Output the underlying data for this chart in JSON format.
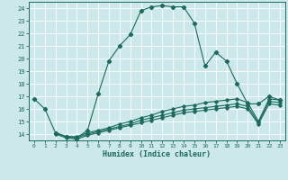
{
  "xlabel": "Humidex (Indice chaleur)",
  "xlim": [
    -0.5,
    23.5
  ],
  "ylim": [
    13.5,
    24.5
  ],
  "xticks": [
    0,
    1,
    2,
    3,
    4,
    5,
    6,
    7,
    8,
    9,
    10,
    11,
    12,
    13,
    14,
    15,
    16,
    17,
    18,
    19,
    20,
    21,
    22,
    23
  ],
  "yticks": [
    14,
    15,
    16,
    17,
    18,
    19,
    20,
    21,
    22,
    23,
    24
  ],
  "bg_color": "#cce8ea",
  "line_color": "#1a6b5a",
  "line1_x": [
    0,
    1,
    2,
    3,
    4,
    5,
    6,
    7,
    8,
    9,
    10,
    11,
    12,
    13,
    14,
    15,
    16,
    17,
    18,
    19,
    20,
    21,
    22,
    23
  ],
  "line1_y": [
    16.8,
    16.0,
    14.1,
    13.8,
    13.7,
    14.3,
    17.2,
    19.8,
    21.0,
    21.9,
    23.8,
    24.1,
    24.2,
    24.1,
    24.1,
    22.8,
    19.4,
    20.5,
    19.8,
    18.0,
    16.4,
    16.4,
    17.0,
    16.7
  ],
  "line2_x": [
    2,
    3,
    4,
    5,
    6,
    7,
    8,
    9,
    10,
    11,
    12,
    13,
    14,
    15,
    16,
    17,
    18,
    19,
    20,
    21,
    22,
    23
  ],
  "line2_y": [
    14.1,
    13.8,
    13.8,
    14.1,
    14.3,
    14.5,
    14.8,
    15.0,
    15.3,
    15.5,
    15.8,
    16.0,
    16.2,
    16.3,
    16.5,
    16.6,
    16.7,
    16.8,
    16.5,
    15.0,
    16.8,
    16.7
  ],
  "line3_x": [
    2,
    3,
    4,
    5,
    6,
    7,
    8,
    9,
    10,
    11,
    12,
    13,
    14,
    15,
    16,
    17,
    18,
    19,
    20,
    21,
    22,
    23
  ],
  "line3_y": [
    14.1,
    13.8,
    13.7,
    14.0,
    14.2,
    14.4,
    14.6,
    14.8,
    15.1,
    15.3,
    15.5,
    15.7,
    15.9,
    16.0,
    16.1,
    16.2,
    16.3,
    16.4,
    16.2,
    14.9,
    16.6,
    16.5
  ],
  "line4_x": [
    2,
    3,
    4,
    5,
    6,
    7,
    8,
    9,
    10,
    11,
    12,
    13,
    14,
    15,
    16,
    17,
    18,
    19,
    20,
    21,
    22,
    23
  ],
  "line4_y": [
    14.0,
    13.7,
    13.6,
    13.9,
    14.1,
    14.3,
    14.5,
    14.7,
    14.9,
    15.1,
    15.3,
    15.5,
    15.7,
    15.8,
    15.9,
    16.0,
    16.1,
    16.2,
    16.0,
    14.8,
    16.4,
    16.3
  ]
}
